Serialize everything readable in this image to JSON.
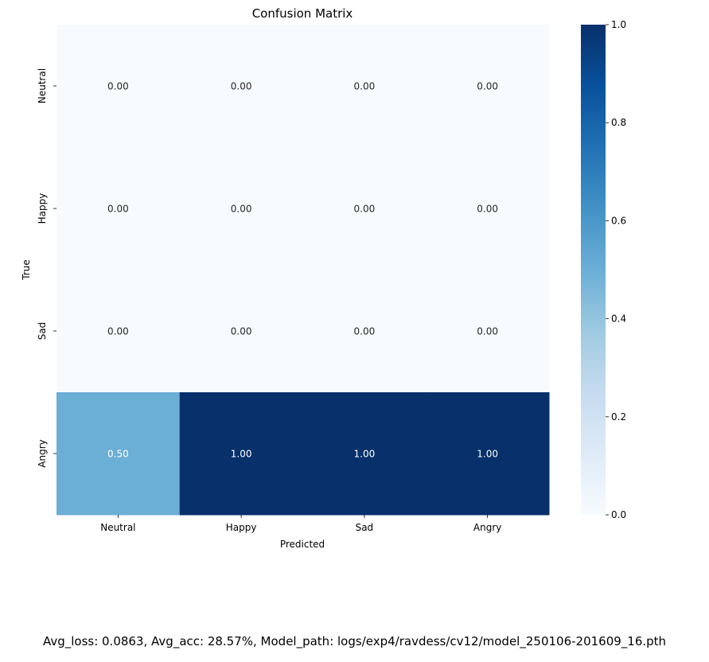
{
  "chart_data": {
    "type": "heatmap",
    "title": "Confusion Matrix",
    "xlabel": "Predicted",
    "ylabel": "True",
    "x_categories": [
      "Neutral",
      "Happy",
      "Sad",
      "Angry"
    ],
    "y_categories": [
      "Neutral",
      "Happy",
      "Sad",
      "Angry"
    ],
    "values": [
      [
        0.0,
        0.0,
        0.0,
        0.0
      ],
      [
        0.0,
        0.0,
        0.0,
        0.0
      ],
      [
        0.0,
        0.0,
        0.0,
        0.0
      ],
      [
        0.5,
        1.0,
        1.0,
        1.0
      ]
    ],
    "annotation_format": "0.00",
    "colormap": "Blues",
    "colorbar": {
      "range": [
        0.0,
        1.0
      ],
      "ticks": [
        "0.0",
        "0.2",
        "0.4",
        "0.6",
        "0.8",
        "1.0"
      ]
    },
    "colors": {
      "low": "#f7fbff",
      "mid": "#6baed6",
      "high": "#08306b",
      "annotation_dark": "#262626",
      "annotation_light": "#ffffff"
    }
  },
  "footer": "Avg_loss: 0.0863, Avg_acc: 28.57%, Model_path: logs/exp4/ravdess/cv12/model_250106-201609_16.pth"
}
